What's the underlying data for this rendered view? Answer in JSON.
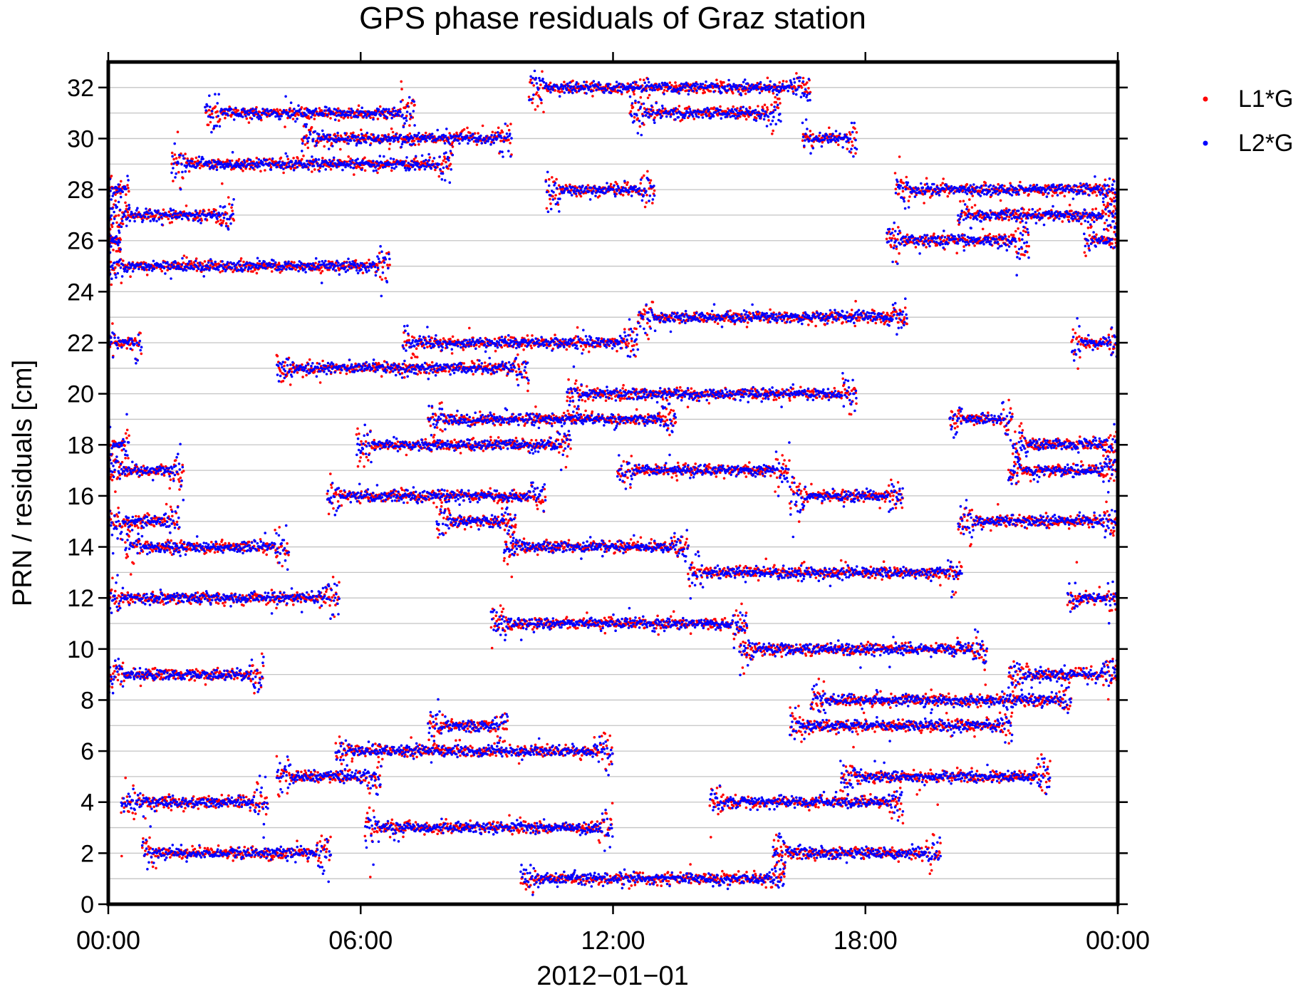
{
  "chart_data": {
    "type": "scatter",
    "title": "GPS phase residuals of Graz station",
    "xlabel": "2012−01−01",
    "ylabel": "PRN / residuals [cm]",
    "xlim": [
      "00:00",
      "24:00"
    ],
    "ylim": [
      0,
      33
    ],
    "x_units": "hours",
    "x_ticks": [
      0,
      6,
      12,
      18,
      24
    ],
    "x_tick_labels": [
      "00:00",
      "06:00",
      "12:00",
      "18:00",
      "00:00"
    ],
    "y_ticks": [
      0,
      2,
      4,
      6,
      8,
      10,
      12,
      14,
      16,
      18,
      20,
      22,
      24,
      26,
      28,
      30,
      32
    ],
    "y_tick_labels": [
      "0",
      "2",
      "4",
      "6",
      "8",
      "10",
      "12",
      "14",
      "16",
      "18",
      "20",
      "22",
      "24",
      "26",
      "28",
      "30",
      "32"
    ],
    "grid": "horizontal at every PRN",
    "legend_position": "right, outside plot",
    "series": [
      {
        "name": "L1*G",
        "color": "#ff0000"
      },
      {
        "name": "L2*G",
        "color": "#0000ff"
      }
    ],
    "passes": [
      {
        "prn": 1,
        "start": 9.8,
        "end": 16.1
      },
      {
        "prn": 2,
        "start": 0.8,
        "end": 5.3
      },
      {
        "prn": 2,
        "start": 15.8,
        "end": 19.8
      },
      {
        "prn": 3,
        "start": 6.1,
        "end": 12.0
      },
      {
        "prn": 4,
        "start": 0.3,
        "end": 3.8
      },
      {
        "prn": 4,
        "start": 14.3,
        "end": 18.9
      },
      {
        "prn": 5,
        "start": 4.0,
        "end": 6.5
      },
      {
        "prn": 5,
        "start": 17.4,
        "end": 22.4
      },
      {
        "prn": 6,
        "start": 5.4,
        "end": 12.0
      },
      {
        "prn": 7,
        "start": 7.6,
        "end": 9.5
      },
      {
        "prn": 7,
        "start": 16.2,
        "end": 21.5
      },
      {
        "prn": 8,
        "start": 16.7,
        "end": 22.9
      },
      {
        "prn": 9,
        "start": 0.0,
        "end": 3.7
      },
      {
        "prn": 9,
        "start": 21.4,
        "end": 24.0
      },
      {
        "prn": 10,
        "start": 15.0,
        "end": 20.9
      },
      {
        "prn": 11,
        "start": 9.1,
        "end": 15.2
      },
      {
        "prn": 12,
        "start": 0.0,
        "end": 5.5
      },
      {
        "prn": 12,
        "start": 22.8,
        "end": 24.0
      },
      {
        "prn": 13,
        "start": 13.8,
        "end": 20.3
      },
      {
        "prn": 14,
        "start": 0.4,
        "end": 4.3
      },
      {
        "prn": 14,
        "start": 9.4,
        "end": 13.8
      },
      {
        "prn": 15,
        "start": 0.0,
        "end": 1.7
      },
      {
        "prn": 15,
        "start": 7.8,
        "end": 9.7
      },
      {
        "prn": 15,
        "start": 20.2,
        "end": 24.0
      },
      {
        "prn": 16,
        "start": 5.2,
        "end": 10.4
      },
      {
        "prn": 16,
        "start": 16.2,
        "end": 18.9
      },
      {
        "prn": 17,
        "start": 0.0,
        "end": 1.8
      },
      {
        "prn": 17,
        "start": 12.1,
        "end": 16.2
      },
      {
        "prn": 17,
        "start": 21.4,
        "end": 24.0
      },
      {
        "prn": 18,
        "start": 0.0,
        "end": 0.5
      },
      {
        "prn": 18,
        "start": 5.9,
        "end": 11.0
      },
      {
        "prn": 18,
        "start": 21.5,
        "end": 24.0
      },
      {
        "prn": 19,
        "start": 7.6,
        "end": 13.5
      },
      {
        "prn": 19,
        "start": 20.0,
        "end": 21.5
      },
      {
        "prn": 20,
        "start": 10.9,
        "end": 17.8
      },
      {
        "prn": 21,
        "start": 4.0,
        "end": 10.0
      },
      {
        "prn": 22,
        "start": 0.0,
        "end": 0.8
      },
      {
        "prn": 22,
        "start": 7.0,
        "end": 12.6
      },
      {
        "prn": 22,
        "start": 22.9,
        "end": 24.0
      },
      {
        "prn": 23,
        "start": 12.6,
        "end": 19.0
      },
      {
        "prn": 25,
        "start": 0.0,
        "end": 6.7
      },
      {
        "prn": 26,
        "start": 0.0,
        "end": 0.3
      },
      {
        "prn": 26,
        "start": 18.5,
        "end": 21.9
      },
      {
        "prn": 26,
        "start": 23.2,
        "end": 24.0
      },
      {
        "prn": 27,
        "start": 0.0,
        "end": 3.0
      },
      {
        "prn": 27,
        "start": 20.2,
        "end": 24.0
      },
      {
        "prn": 28,
        "start": 0.0,
        "end": 0.5
      },
      {
        "prn": 28,
        "start": 10.4,
        "end": 13.0
      },
      {
        "prn": 28,
        "start": 18.7,
        "end": 24.0
      },
      {
        "prn": 29,
        "start": 1.5,
        "end": 8.2
      },
      {
        "prn": 30,
        "start": 4.6,
        "end": 9.6
      },
      {
        "prn": 30,
        "start": 16.5,
        "end": 17.8
      },
      {
        "prn": 31,
        "start": 2.3,
        "end": 7.3
      },
      {
        "prn": 31,
        "start": 12.4,
        "end": 16.0
      },
      {
        "prn": 32,
        "start": 10.0,
        "end": 16.7
      }
    ]
  }
}
